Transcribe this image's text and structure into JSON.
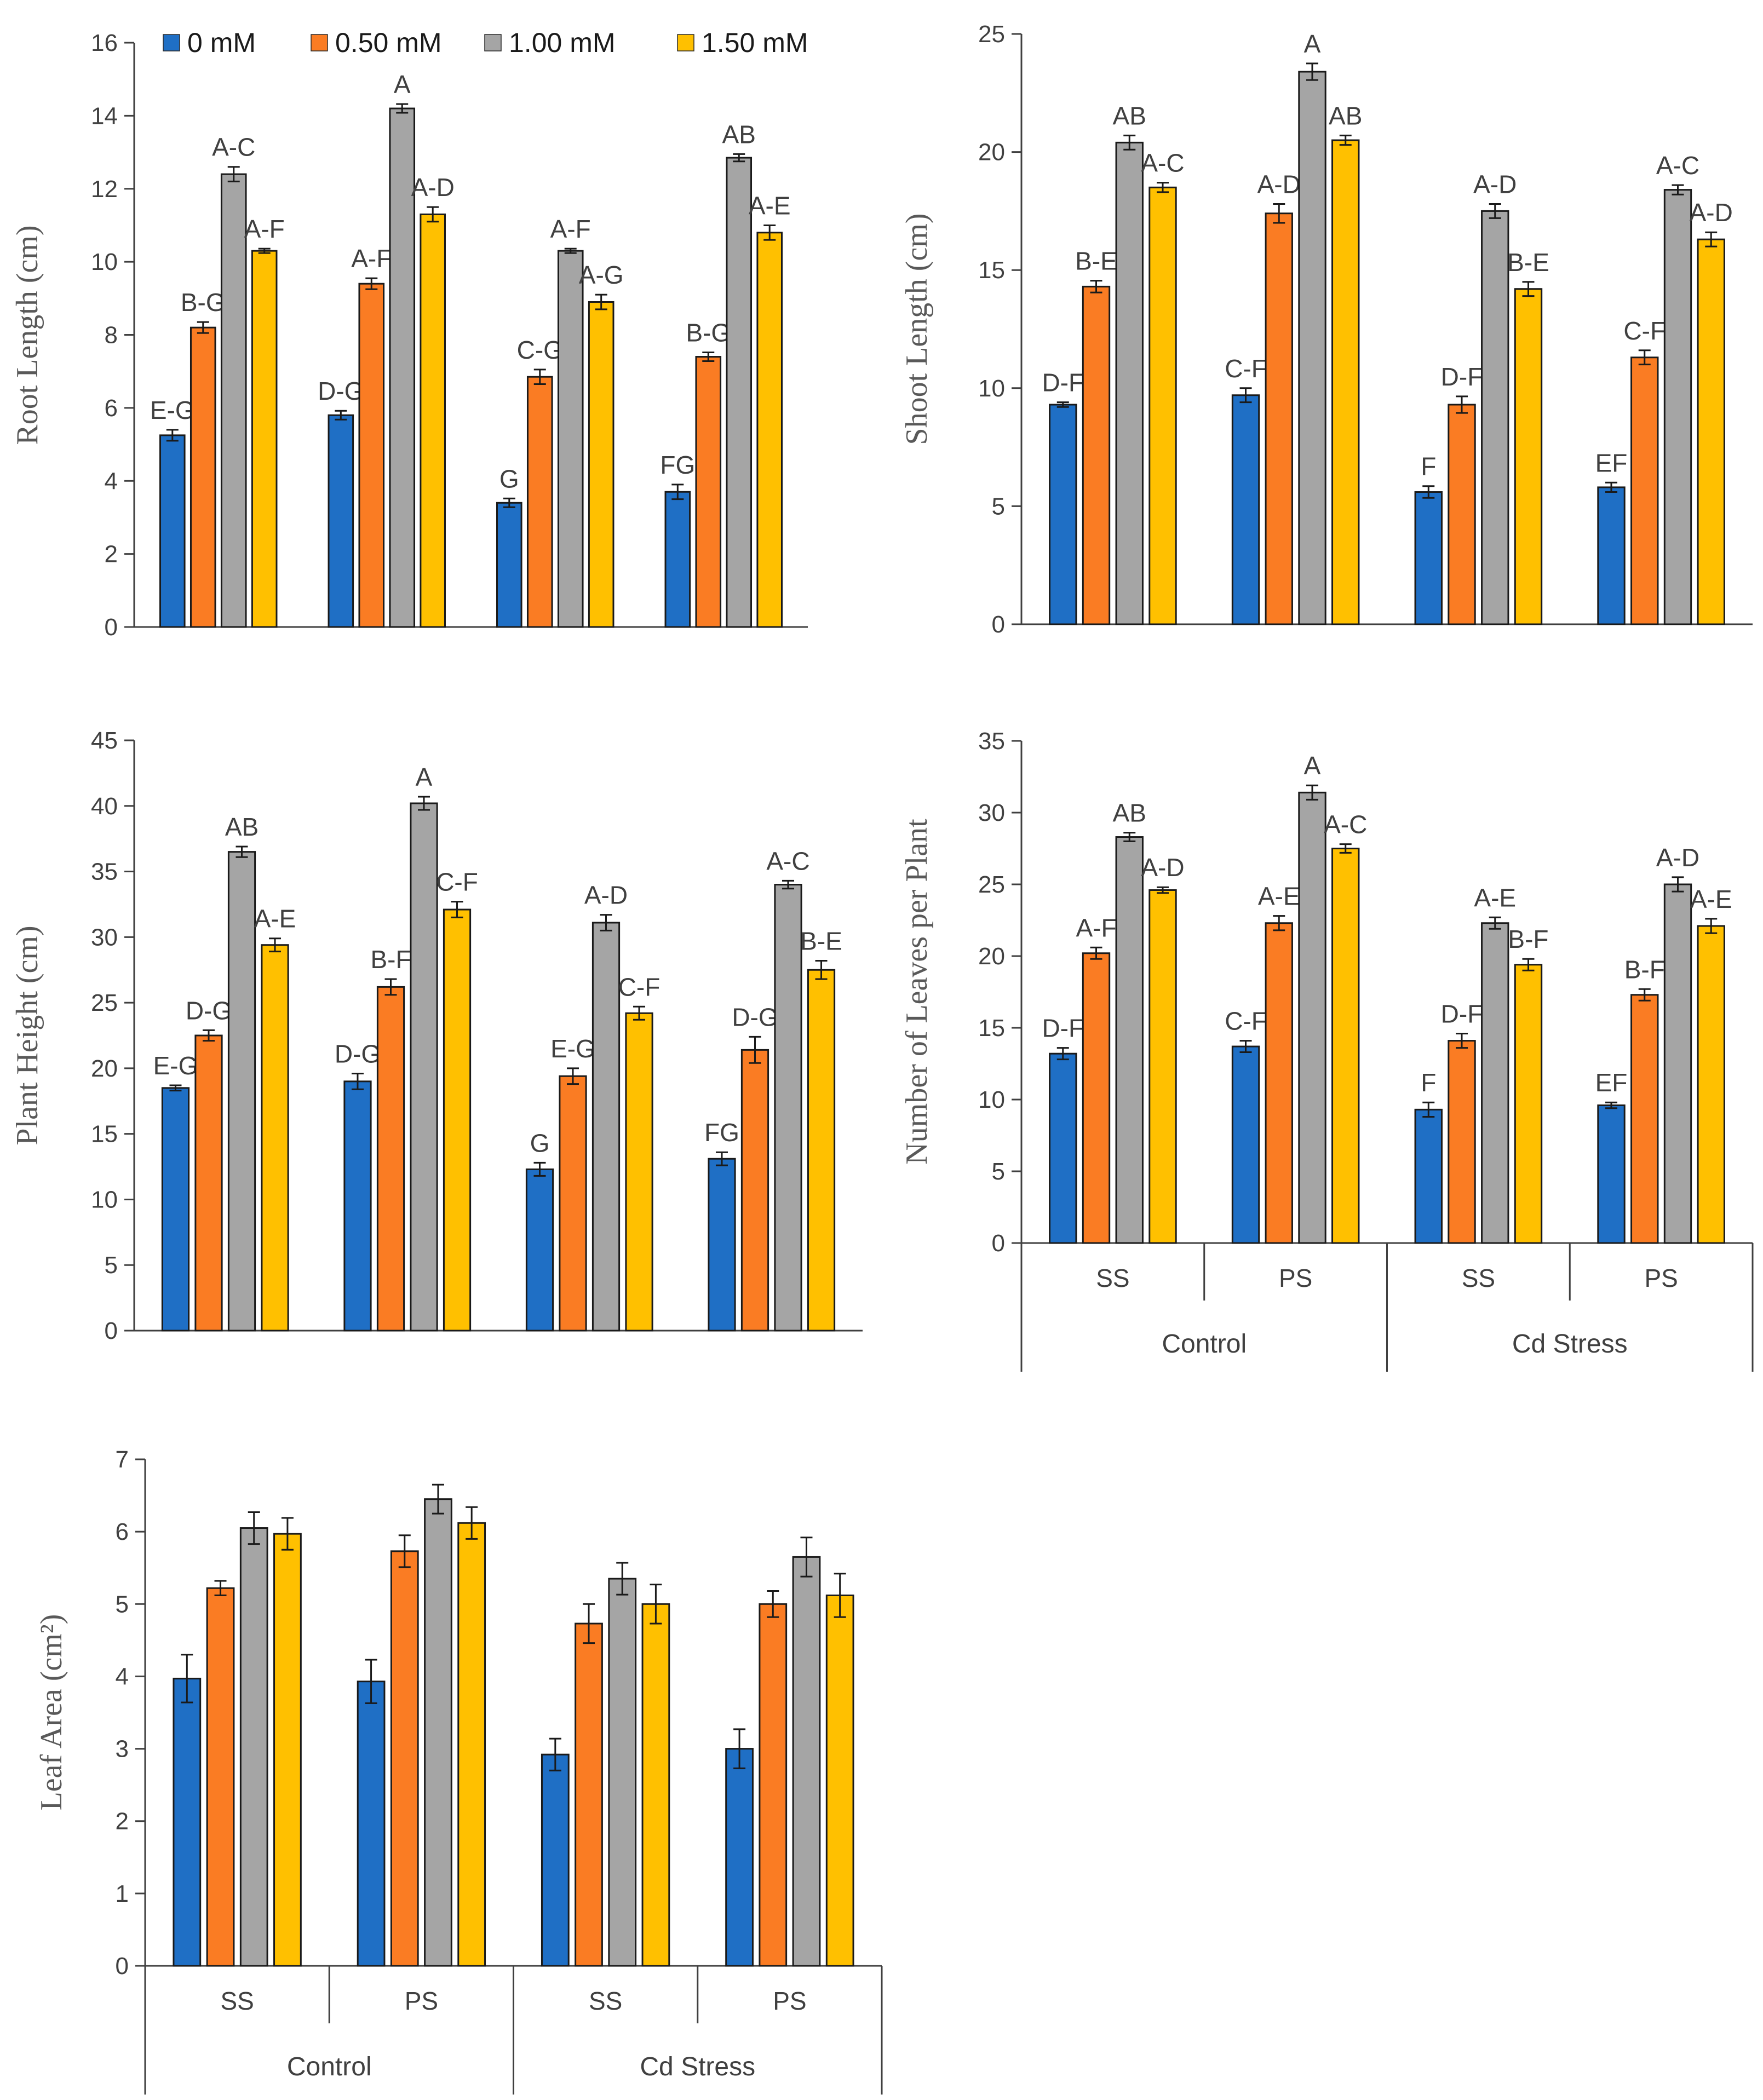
{
  "legend": {
    "entries": [
      {
        "label": "0 mM",
        "color": "#1f6fc5"
      },
      {
        "label": "0.50 mM",
        "color": "#fa7c23"
      },
      {
        "label": "1.00 mM",
        "color": "#a5a5a5"
      },
      {
        "label": "1.50 mM",
        "color": "#ffc000"
      }
    ]
  },
  "x_axis": {
    "groups": [
      "SS",
      "PS",
      "SS",
      "PS"
    ],
    "conditions": [
      "Control",
      "Cd Stress"
    ]
  },
  "chart_data": [
    {
      "type": "bar",
      "id": "root-length",
      "ylabel": "Root Length (cm)",
      "ylim": [
        0,
        16
      ],
      "yticks": [
        0,
        2,
        4,
        6,
        8,
        10,
        12,
        14,
        16
      ],
      "categories": [
        "Control SS",
        "Control PS",
        "Cd Stress SS",
        "Cd Stress PS"
      ],
      "series": [
        {
          "name": "0 mM",
          "values": [
            5.25,
            5.8,
            3.4,
            3.7
          ],
          "errors": [
            0.15,
            0.12,
            0.12,
            0.2
          ],
          "labels": [
            "E-G",
            "D-G",
            "G",
            "FG"
          ]
        },
        {
          "name": "0.50 mM",
          "values": [
            8.2,
            9.4,
            6.85,
            7.4
          ],
          "errors": [
            0.15,
            0.15,
            0.2,
            0.12
          ],
          "labels": [
            "B-G",
            "A-F",
            "C-G",
            "B-G"
          ]
        },
        {
          "name": "1.00 mM",
          "values": [
            12.4,
            14.2,
            10.3,
            12.85
          ],
          "errors": [
            0.2,
            0.12,
            0.06,
            0.1
          ],
          "labels": [
            "A-C",
            "A",
            "A-F",
            "AB"
          ]
        },
        {
          "name": "1.50 mM",
          "values": [
            10.3,
            11.3,
            8.9,
            10.8
          ],
          "errors": [
            0.06,
            0.2,
            0.2,
            0.2
          ],
          "labels": [
            "A-F",
            "A-D",
            "A-G",
            "A-E"
          ]
        }
      ]
    },
    {
      "type": "bar",
      "id": "shoot-length",
      "ylabel": "Shoot Length (cm)",
      "ylim": [
        0,
        25
      ],
      "yticks": [
        0,
        5,
        10,
        15,
        20,
        25
      ],
      "categories": [
        "Control SS",
        "Control PS",
        "Cd Stress SS",
        "Cd Stress PS"
      ],
      "series": [
        {
          "name": "0 mM",
          "values": [
            9.3,
            9.7,
            5.6,
            5.8
          ],
          "errors": [
            0.1,
            0.3,
            0.25,
            0.2
          ],
          "labels": [
            "D-F",
            "C-F",
            "F",
            "EF"
          ]
        },
        {
          "name": "0.50 mM",
          "values": [
            14.3,
            17.4,
            9.3,
            11.3
          ],
          "errors": [
            0.25,
            0.4,
            0.35,
            0.3
          ],
          "labels": [
            "B-E",
            "A-D",
            "D-F",
            "C-F"
          ]
        },
        {
          "name": "1.00 mM",
          "values": [
            20.4,
            23.4,
            17.5,
            18.4
          ],
          "errors": [
            0.3,
            0.35,
            0.3,
            0.2
          ],
          "labels": [
            "AB",
            "A",
            "A-D",
            "A-C"
          ]
        },
        {
          "name": "1.50 mM",
          "values": [
            18.5,
            20.5,
            14.2,
            16.3
          ],
          "errors": [
            0.2,
            0.2,
            0.3,
            0.3
          ],
          "labels": [
            "A-C",
            "AB",
            "B-E",
            "A-D"
          ]
        }
      ]
    },
    {
      "type": "bar",
      "id": "plant-height",
      "ylabel": "Plant Height (cm)",
      "ylim": [
        0,
        45
      ],
      "yticks": [
        0,
        5,
        10,
        15,
        20,
        25,
        30,
        35,
        40,
        45
      ],
      "categories": [
        "Control SS",
        "Control PS",
        "Cd Stress SS",
        "Cd Stress PS"
      ],
      "series": [
        {
          "name": "0 mM",
          "values": [
            18.5,
            19.0,
            12.3,
            13.1
          ],
          "errors": [
            0.2,
            0.6,
            0.5,
            0.5
          ],
          "labels": [
            "E-G",
            "D-G",
            "G",
            "FG"
          ]
        },
        {
          "name": "0.50 mM",
          "values": [
            22.5,
            26.2,
            19.4,
            21.4
          ],
          "errors": [
            0.4,
            0.6,
            0.6,
            1.0
          ],
          "labels": [
            "D-G",
            "B-F",
            "E-G",
            "D-G"
          ]
        },
        {
          "name": "1.00 mM",
          "values": [
            36.5,
            40.2,
            31.1,
            34.0
          ],
          "errors": [
            0.4,
            0.5,
            0.6,
            0.3
          ],
          "labels": [
            "AB",
            "A",
            "A-D",
            "A-C"
          ]
        },
        {
          "name": "1.50 mM",
          "values": [
            29.4,
            32.1,
            24.2,
            27.5
          ],
          "errors": [
            0.5,
            0.6,
            0.5,
            0.7
          ],
          "labels": [
            "A-E",
            "C-F",
            "C-F",
            "B-E"
          ]
        }
      ]
    },
    {
      "type": "bar",
      "id": "leaves-per-plant",
      "ylabel": "Number of Leaves per Plant",
      "ylim": [
        0,
        35
      ],
      "yticks": [
        0,
        5,
        10,
        15,
        20,
        25,
        30,
        35
      ],
      "categories": [
        "Control SS",
        "Control PS",
        "Cd Stress SS",
        "Cd Stress PS"
      ],
      "series": [
        {
          "name": "0 mM",
          "values": [
            13.2,
            13.7,
            9.3,
            9.6
          ],
          "errors": [
            0.4,
            0.4,
            0.5,
            0.2
          ],
          "labels": [
            "D-F",
            "C-F",
            "F",
            "EF"
          ]
        },
        {
          "name": "0.50 mM",
          "values": [
            20.2,
            22.3,
            14.1,
            17.3
          ],
          "errors": [
            0.4,
            0.5,
            0.5,
            0.4
          ],
          "labels": [
            "A-F",
            "A-E",
            "D-F",
            "B-F"
          ]
        },
        {
          "name": "1.00 mM",
          "values": [
            28.3,
            31.4,
            22.3,
            25.0
          ],
          "errors": [
            0.3,
            0.5,
            0.4,
            0.5
          ],
          "labels": [
            "AB",
            "A",
            "A-E",
            "A-D"
          ]
        },
        {
          "name": "1.50 mM",
          "values": [
            24.6,
            27.5,
            19.4,
            22.1
          ],
          "errors": [
            0.2,
            0.3,
            0.4,
            0.5
          ],
          "labels": [
            "A-D",
            "A-C",
            "B-F",
            "A-E"
          ]
        }
      ]
    },
    {
      "type": "bar",
      "id": "leaf-area",
      "ylabel": "Leaf Area (cm²)",
      "ylim": [
        0,
        7
      ],
      "yticks": [
        0,
        1,
        2,
        3,
        4,
        5,
        6,
        7
      ],
      "categories": [
        "Control SS",
        "Control PS",
        "Cd Stress SS",
        "Cd Stress PS"
      ],
      "series": [
        {
          "name": "0 mM",
          "values": [
            3.97,
            3.93,
            2.92,
            3.0
          ],
          "errors": [
            0.33,
            0.3,
            0.22,
            0.27
          ],
          "labels": []
        },
        {
          "name": "0.50 mM",
          "values": [
            5.22,
            5.73,
            4.73,
            5.0
          ],
          "errors": [
            0.1,
            0.22,
            0.27,
            0.18
          ],
          "labels": []
        },
        {
          "name": "1.00 mM",
          "values": [
            6.05,
            6.45,
            5.35,
            5.65
          ],
          "errors": [
            0.22,
            0.2,
            0.22,
            0.27
          ],
          "labels": []
        },
        {
          "name": "1.50 mM",
          "values": [
            5.97,
            6.12,
            5.0,
            5.12
          ],
          "errors": [
            0.22,
            0.22,
            0.27,
            0.3
          ],
          "labels": []
        }
      ]
    }
  ]
}
